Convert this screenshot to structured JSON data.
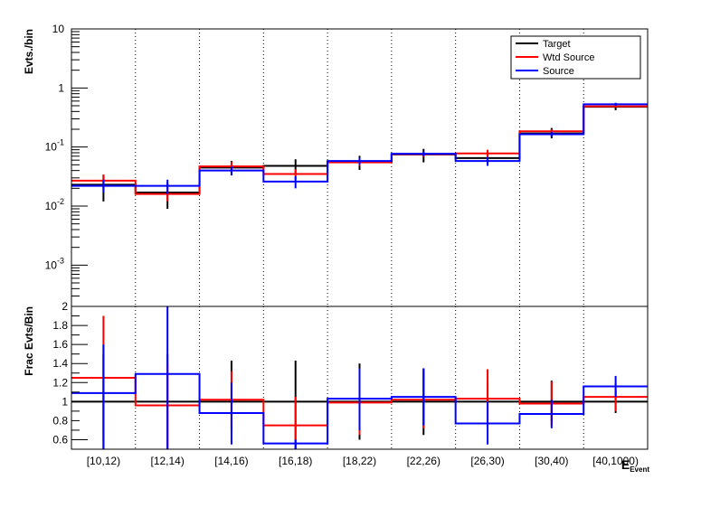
{
  "chart_data": [
    {
      "type": "line",
      "panel": "top",
      "ylabel": "Evts./bin",
      "yscale": "log",
      "ylim": [
        0.0002,
        10
      ],
      "y_ticks": [
        {
          "value": 10,
          "label": "10"
        },
        {
          "value": 1,
          "label": "1"
        },
        {
          "value": 0.1,
          "label": "10^-1"
        },
        {
          "value": 0.01,
          "label": "10^-2"
        },
        {
          "value": 0.001,
          "label": "10^-3"
        }
      ],
      "categories": [
        "[10,12)",
        "[12,14)",
        "[14,16)",
        "[16,18)",
        "[18,22)",
        "[22,26)",
        "[26,30)",
        "[30,40)",
        "[40,1000)"
      ],
      "series": [
        {
          "name": "Target",
          "color": "#000000",
          "values": [
            0.023,
            0.017,
            0.045,
            0.048,
            0.056,
            0.075,
            0.065,
            0.17,
            0.48
          ],
          "err_low": [
            0.012,
            0.009,
            0.034,
            0.035,
            0.041,
            0.055,
            0.052,
            0.14,
            0.42
          ],
          "err_high": [
            0.034,
            0.025,
            0.058,
            0.062,
            0.071,
            0.093,
            0.08,
            0.21,
            0.55
          ]
        },
        {
          "name": "Wtd Source",
          "color": "#ff0000",
          "values": [
            0.027,
            0.016,
            0.047,
            0.035,
            0.055,
            0.076,
            0.078,
            0.185,
            0.49
          ],
          "err_low": [
            0.02,
            0.012,
            0.038,
            0.028,
            0.048,
            0.068,
            0.068,
            0.17,
            0.47
          ],
          "err_high": [
            0.034,
            0.02,
            0.056,
            0.042,
            0.062,
            0.084,
            0.09,
            0.2,
            0.51
          ]
        },
        {
          "name": "Source",
          "color": "#0000ff",
          "values": [
            0.022,
            0.022,
            0.04,
            0.026,
            0.058,
            0.077,
            0.058,
            0.165,
            0.53
          ],
          "err_low": [
            0.017,
            0.016,
            0.033,
            0.02,
            0.05,
            0.07,
            0.048,
            0.148,
            0.5
          ],
          "err_high": [
            0.028,
            0.028,
            0.047,
            0.032,
            0.066,
            0.084,
            0.068,
            0.182,
            0.56
          ]
        }
      ],
      "legend": {
        "position": "top-right",
        "entries": [
          "Target",
          "Wtd Source",
          "Source"
        ]
      },
      "grid": {
        "x": "dotted-vertical",
        "y": false
      }
    },
    {
      "type": "line",
      "panel": "bottom",
      "ylabel": "Frac Evts/Bin",
      "ylim": [
        0.5,
        2.0
      ],
      "y_ticks": [
        {
          "value": 0.6,
          "label": "0.6"
        },
        {
          "value": 0.8,
          "label": "0.8"
        },
        {
          "value": 1.0,
          "label": "1"
        },
        {
          "value": 1.2,
          "label": "1.2"
        },
        {
          "value": 1.4,
          "label": "1.4"
        },
        {
          "value": 1.6,
          "label": "1.6"
        },
        {
          "value": 1.8,
          "label": "1.8"
        },
        {
          "value": 2.0,
          "label": "2"
        }
      ],
      "xlabel": "E_{Event}",
      "categories": [
        "[10,12)",
        "[12,14)",
        "[14,16)",
        "[16,18)",
        "[18,22)",
        "[22,26)",
        "[26,30)",
        "[30,40)",
        "[40,1000)"
      ],
      "series": [
        {
          "name": "Target",
          "color": "#000000",
          "values": [
            1,
            1,
            1,
            1,
            1,
            1,
            1,
            1,
            1
          ],
          "err_low": [
            0.5,
            0.5,
            0.7,
            0.5,
            0.6,
            0.65,
            0.8,
            0.8,
            0.88
          ],
          "err_high": [
            1.5,
            1.5,
            1.43,
            1.43,
            1.4,
            1.35,
            1.2,
            1.22,
            1.12
          ]
        },
        {
          "name": "Wtd Source",
          "color": "#ff0000",
          "values": [
            1.25,
            0.96,
            1.02,
            0.75,
            0.99,
            1.02,
            1.03,
            0.98,
            1.05
          ],
          "err_low": [
            0.6,
            0.52,
            0.72,
            0.5,
            0.65,
            0.72,
            0.75,
            0.75,
            0.9
          ],
          "err_high": [
            1.9,
            1.4,
            1.32,
            1.05,
            1.35,
            1.3,
            1.34,
            1.21,
            1.2
          ]
        },
        {
          "name": "Source",
          "color": "#0000ff",
          "values": [
            1.09,
            1.29,
            0.88,
            0.56,
            1.03,
            1.05,
            0.77,
            0.87,
            1.16
          ],
          "err_low": [
            0.5,
            0.5,
            0.55,
            0.5,
            0.7,
            0.75,
            0.55,
            0.72,
            1.05
          ],
          "err_high": [
            1.6,
            2.0,
            1.2,
            0.6,
            1.35,
            1.35,
            1.0,
            1.02,
            1.27
          ]
        }
      ]
    }
  ]
}
